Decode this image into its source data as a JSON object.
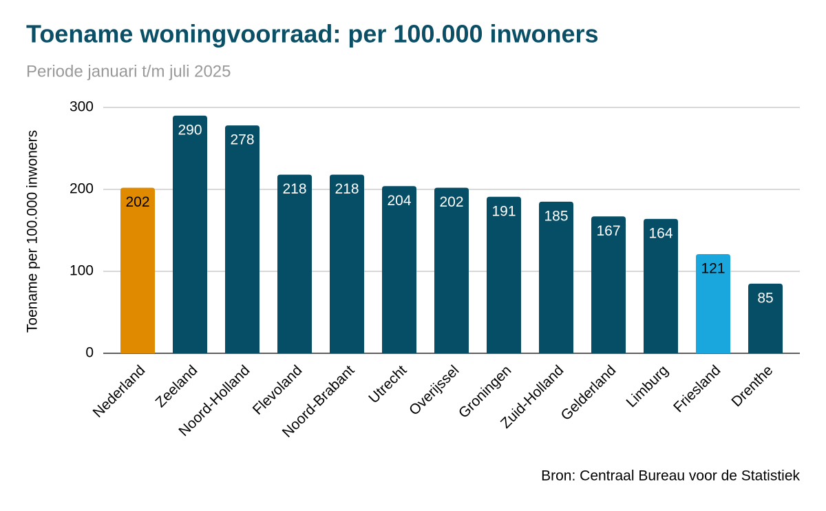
{
  "chart_data": {
    "type": "bar",
    "title": "Toename woningvoorraad: per 100.000 inwoners",
    "subtitle": "Periode januari t/m juli 2025",
    "y_label": "Toename per 100.000 inwoners",
    "source": "Bron: Centraal Bureau voor de Statistiek",
    "categories": [
      "Nederland",
      "Zeeland",
      "Noord-Holland",
      "Flevoland",
      "Noord-Brabant",
      "Utrecht",
      "Overijssel",
      "Groningen",
      "Zuid-Holland",
      "Gelderland",
      "Limburg",
      "Friesland",
      "Drenthe"
    ],
    "values": [
      202,
      290,
      278,
      218,
      218,
      204,
      202,
      191,
      185,
      167,
      164,
      121,
      85
    ],
    "colors": [
      "#e08a00",
      "#064d66",
      "#064d66",
      "#064d66",
      "#064d66",
      "#064d66",
      "#064d66",
      "#064d66",
      "#064d66",
      "#064d66",
      "#064d66",
      "#1aa7dd",
      "#064d66"
    ],
    "ylim": [
      0,
      300
    ],
    "yticks": [
      0,
      100,
      200,
      300
    ],
    "grid": true
  }
}
